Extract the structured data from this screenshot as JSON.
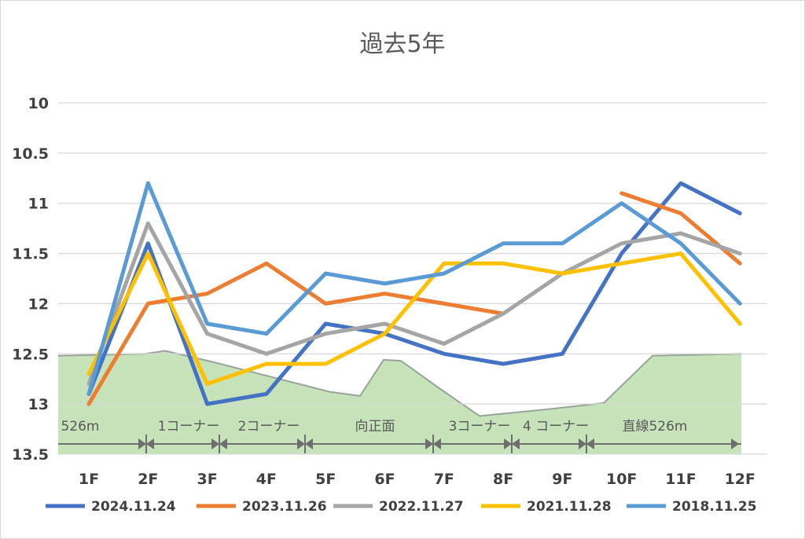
{
  "chart_data": {
    "type": "line",
    "title": "過去5年",
    "categories": [
      "1F",
      "2F",
      "3F",
      "4F",
      "5F",
      "6F",
      "7F",
      "8F",
      "9F",
      "10F",
      "11F",
      "12F"
    ],
    "y_ticks": [
      "10",
      "10.5",
      "11",
      "11.5",
      "12",
      "12.5",
      "13",
      "13.5"
    ],
    "ylim": [
      13.5,
      10
    ],
    "y_reversed": true,
    "grid": true,
    "legend_position": "bottom",
    "series": [
      {
        "name": "2024.11.24",
        "color": "#4472C4",
        "values": [
          12.9,
          11.4,
          13.0,
          12.9,
          12.2,
          12.3,
          12.5,
          12.6,
          12.5,
          11.5,
          10.8,
          11.1
        ]
      },
      {
        "name": "2023.11.26",
        "color": "#ED7D31",
        "values": [
          13.0,
          12.0,
          11.9,
          11.6,
          12.0,
          11.9,
          12.0,
          12.1,
          null,
          10.9,
          11.1,
          11.6
        ]
      },
      {
        "name": "2022.11.27",
        "color": "#A5A5A5",
        "values": [
          12.8,
          11.2,
          12.3,
          12.5,
          12.3,
          12.2,
          12.4,
          12.1,
          11.7,
          11.4,
          11.3,
          11.5
        ]
      },
      {
        "name": "2021.11.28",
        "color": "#FFC000",
        "values": [
          12.7,
          11.5,
          12.8,
          12.6,
          12.6,
          12.3,
          11.6,
          11.6,
          11.7,
          11.6,
          11.5,
          12.2
        ]
      },
      {
        "name": "2018.11.25",
        "color": "#5B9BD5",
        "values": [
          12.9,
          10.8,
          12.2,
          12.3,
          11.7,
          11.8,
          11.7,
          11.4,
          11.4,
          11.0,
          11.4,
          12.0
        ]
      }
    ],
    "course_band_labels": [
      {
        "text": "526m",
        "from": 0,
        "to": 1
      },
      {
        "text": "1コーナー",
        "from": 1,
        "to": 2
      },
      {
        "text": "2コーナー",
        "from": 2,
        "to": 3
      },
      {
        "text": "向正面",
        "from": 3,
        "to": 6
      },
      {
        "text": "3コーナー",
        "from": 6,
        "to": 7
      },
      {
        "text": "4 コーナー",
        "from": 7,
        "to": 8
      },
      {
        "text": "直線526m",
        "from": 8,
        "to": 11
      }
    ],
    "colors": {
      "band_fill": "#C6E3B9",
      "band_edge": "#9AA39A",
      "grid": "#D9D9D9",
      "arrow": "#6E6E6E"
    }
  }
}
